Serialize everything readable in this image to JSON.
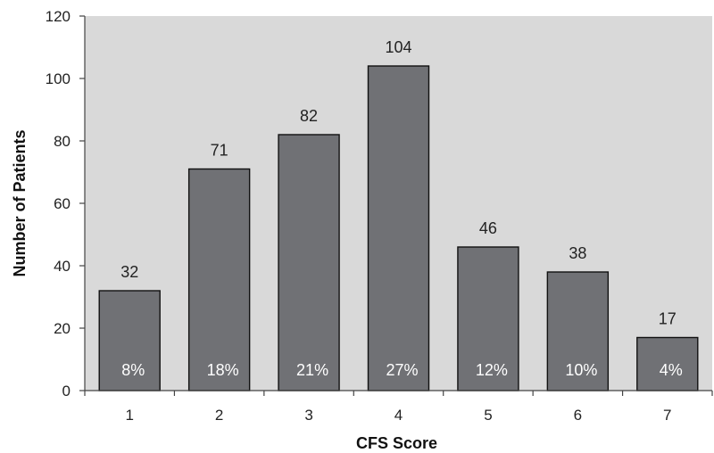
{
  "chart_data": {
    "type": "bar",
    "xlabel": "CFS Score",
    "ylabel": "Number of Patients",
    "categories": [
      "1",
      "2",
      "3",
      "4",
      "5",
      "6",
      "7"
    ],
    "values": [
      32,
      71,
      82,
      104,
      46,
      38,
      17
    ],
    "percent_labels": [
      "8%",
      "18%",
      "21%",
      "27%",
      "12%",
      "10%",
      "4%"
    ],
    "ylim": [
      0,
      120
    ],
    "yticks": [
      0,
      20,
      40,
      60,
      80,
      100,
      120
    ],
    "grid": false,
    "legend": "none",
    "colors": {
      "plot_background": "#d9d9d9",
      "bar_fill": "#707175",
      "bar_stroke": "#111111",
      "axis": "#444444"
    }
  }
}
